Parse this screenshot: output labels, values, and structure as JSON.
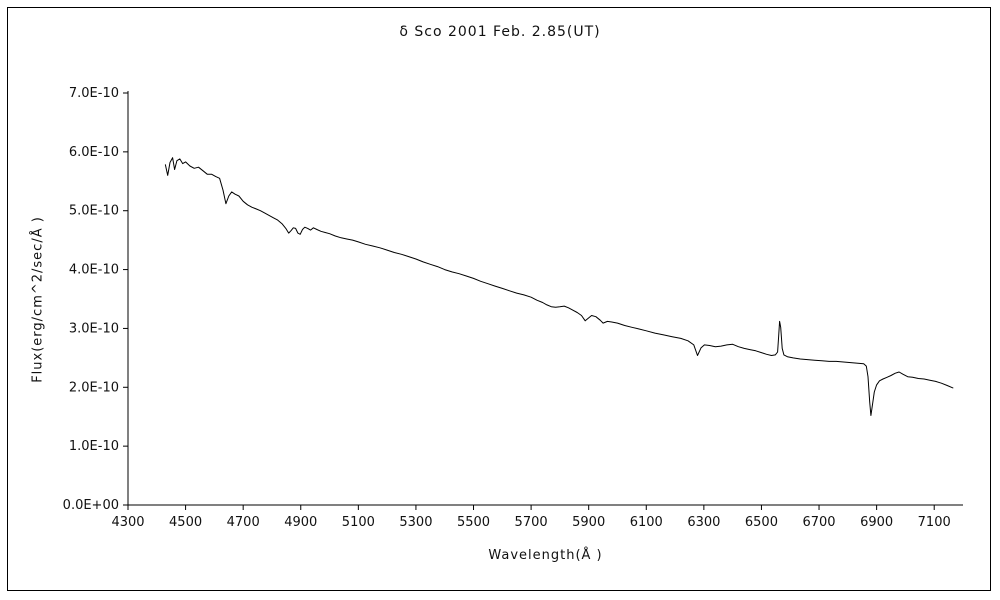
{
  "chart_data": {
    "type": "line",
    "title": "δ Sco  2001 Feb. 2.85(UT)",
    "xlabel": "Wavelength(Å )",
    "ylabel": "Flux(erg/cm^2/sec/Å )",
    "flux_unit": "1e-10 erg/cm^2/sec/Å",
    "xlim": [
      4300,
      7200
    ],
    "ylim": [
      0,
      7
    ],
    "x_ticks": [
      4300,
      4500,
      4700,
      4900,
      5100,
      5300,
      5500,
      5700,
      5900,
      6100,
      6300,
      6500,
      6700,
      6900,
      7100
    ],
    "y_ticks": [
      0,
      1,
      2,
      3,
      4,
      5,
      6,
      7
    ],
    "y_tick_labels": [
      "0.0E+00",
      "1.0E-10",
      "2.0E-10",
      "3.0E-10",
      "4.0E-10",
      "5.0E-10",
      "6.0E-10",
      "7.0E-10"
    ],
    "grid": false,
    "legend": false,
    "line_color": "#000000",
    "series": [
      {
        "name": "delta-sco-spectrum",
        "points": [
          [
            4430,
            5.78
          ],
          [
            4438,
            5.6
          ],
          [
            4446,
            5.82
          ],
          [
            4455,
            5.9
          ],
          [
            4462,
            5.7
          ],
          [
            4470,
            5.85
          ],
          [
            4480,
            5.88
          ],
          [
            4490,
            5.8
          ],
          [
            4500,
            5.83
          ],
          [
            4515,
            5.76
          ],
          [
            4530,
            5.72
          ],
          [
            4545,
            5.74
          ],
          [
            4560,
            5.68
          ],
          [
            4575,
            5.62
          ],
          [
            4590,
            5.62
          ],
          [
            4605,
            5.58
          ],
          [
            4618,
            5.55
          ],
          [
            4630,
            5.35
          ],
          [
            4640,
            5.12
          ],
          [
            4650,
            5.25
          ],
          [
            4660,
            5.32
          ],
          [
            4672,
            5.28
          ],
          [
            4685,
            5.25
          ],
          [
            4700,
            5.16
          ],
          [
            4715,
            5.1
          ],
          [
            4730,
            5.06
          ],
          [
            4745,
            5.03
          ],
          [
            4760,
            5.0
          ],
          [
            4775,
            4.96
          ],
          [
            4790,
            4.92
          ],
          [
            4805,
            4.88
          ],
          [
            4820,
            4.84
          ],
          [
            4835,
            4.78
          ],
          [
            4848,
            4.7
          ],
          [
            4858,
            4.62
          ],
          [
            4866,
            4.66
          ],
          [
            4874,
            4.71
          ],
          [
            4882,
            4.7
          ],
          [
            4890,
            4.62
          ],
          [
            4898,
            4.6
          ],
          [
            4906,
            4.68
          ],
          [
            4914,
            4.72
          ],
          [
            4924,
            4.7
          ],
          [
            4934,
            4.67
          ],
          [
            4944,
            4.71
          ],
          [
            4956,
            4.68
          ],
          [
            4970,
            4.65
          ],
          [
            4985,
            4.63
          ],
          [
            5000,
            4.61
          ],
          [
            5020,
            4.57
          ],
          [
            5040,
            4.54
          ],
          [
            5060,
            4.52
          ],
          [
            5080,
            4.5
          ],
          [
            5100,
            4.47
          ],
          [
            5125,
            4.43
          ],
          [
            5150,
            4.4
          ],
          [
            5175,
            4.37
          ],
          [
            5200,
            4.33
          ],
          [
            5225,
            4.29
          ],
          [
            5250,
            4.26
          ],
          [
            5275,
            4.22
          ],
          [
            5300,
            4.18
          ],
          [
            5325,
            4.13
          ],
          [
            5350,
            4.09
          ],
          [
            5375,
            4.05
          ],
          [
            5400,
            4.0
          ],
          [
            5425,
            3.96
          ],
          [
            5450,
            3.93
          ],
          [
            5475,
            3.89
          ],
          [
            5500,
            3.85
          ],
          [
            5525,
            3.8
          ],
          [
            5550,
            3.76
          ],
          [
            5575,
            3.72
          ],
          [
            5600,
            3.68
          ],
          [
            5625,
            3.64
          ],
          [
            5650,
            3.6
          ],
          [
            5675,
            3.57
          ],
          [
            5700,
            3.53
          ],
          [
            5720,
            3.48
          ],
          [
            5740,
            3.44
          ],
          [
            5755,
            3.4
          ],
          [
            5770,
            3.37
          ],
          [
            5785,
            3.36
          ],
          [
            5800,
            3.37
          ],
          [
            5815,
            3.38
          ],
          [
            5830,
            3.35
          ],
          [
            5845,
            3.31
          ],
          [
            5860,
            3.27
          ],
          [
            5875,
            3.22
          ],
          [
            5888,
            3.13
          ],
          [
            5898,
            3.17
          ],
          [
            5910,
            3.22
          ],
          [
            5925,
            3.2
          ],
          [
            5940,
            3.14
          ],
          [
            5950,
            3.09
          ],
          [
            5965,
            3.12
          ],
          [
            5980,
            3.11
          ],
          [
            6000,
            3.09
          ],
          [
            6025,
            3.05
          ],
          [
            6050,
            3.02
          ],
          [
            6075,
            2.99
          ],
          [
            6100,
            2.96
          ],
          [
            6130,
            2.92
          ],
          [
            6160,
            2.89
          ],
          [
            6190,
            2.86
          ],
          [
            6220,
            2.83
          ],
          [
            6245,
            2.79
          ],
          [
            6265,
            2.72
          ],
          [
            6278,
            2.54
          ],
          [
            6290,
            2.67
          ],
          [
            6302,
            2.72
          ],
          [
            6320,
            2.71
          ],
          [
            6340,
            2.69
          ],
          [
            6360,
            2.7
          ],
          [
            6380,
            2.72
          ],
          [
            6400,
            2.73
          ],
          [
            6420,
            2.69
          ],
          [
            6440,
            2.66
          ],
          [
            6460,
            2.64
          ],
          [
            6480,
            2.62
          ],
          [
            6500,
            2.59
          ],
          [
            6518,
            2.56
          ],
          [
            6535,
            2.54
          ],
          [
            6548,
            2.55
          ],
          [
            6556,
            2.6
          ],
          [
            6560,
            2.88
          ],
          [
            6563,
            3.12
          ],
          [
            6567,
            3.02
          ],
          [
            6572,
            2.66
          ],
          [
            6578,
            2.55
          ],
          [
            6590,
            2.52
          ],
          [
            6610,
            2.5
          ],
          [
            6635,
            2.48
          ],
          [
            6660,
            2.47
          ],
          [
            6685,
            2.46
          ],
          [
            6710,
            2.45
          ],
          [
            6735,
            2.44
          ],
          [
            6760,
            2.44
          ],
          [
            6785,
            2.43
          ],
          [
            6810,
            2.42
          ],
          [
            6835,
            2.41
          ],
          [
            6855,
            2.4
          ],
          [
            6864,
            2.36
          ],
          [
            6870,
            2.18
          ],
          [
            6876,
            1.75
          ],
          [
            6880,
            1.52
          ],
          [
            6886,
            1.72
          ],
          [
            6892,
            1.92
          ],
          [
            6900,
            2.04
          ],
          [
            6910,
            2.11
          ],
          [
            6922,
            2.14
          ],
          [
            6936,
            2.17
          ],
          [
            6950,
            2.2
          ],
          [
            6965,
            2.24
          ],
          [
            6978,
            2.26
          ],
          [
            6992,
            2.22
          ],
          [
            7008,
            2.18
          ],
          [
            7025,
            2.17
          ],
          [
            7045,
            2.15
          ],
          [
            7065,
            2.14
          ],
          [
            7085,
            2.12
          ],
          [
            7105,
            2.1
          ],
          [
            7125,
            2.07
          ],
          [
            7145,
            2.03
          ],
          [
            7165,
            1.99
          ]
        ]
      }
    ]
  }
}
